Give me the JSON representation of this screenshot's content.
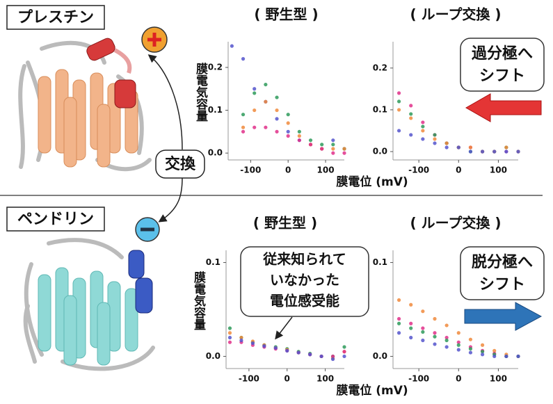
{
  "structures": {
    "top": "プレスチン",
    "bottom": "ペンドリン",
    "swap": "交換"
  },
  "annotations": {
    "hyperpolarize": [
      "過分極へ",
      "シフト"
    ],
    "depolarize": [
      "脱分極へ",
      "シフト"
    ],
    "novel": [
      "従来知られて",
      "いなかった",
      "電位感受能"
    ]
  },
  "chart_data": [
    {
      "type": "scatter",
      "title": "( 野生型 )",
      "y_label": "膜電気容量",
      "x_label": "膜電位 (mV)",
      "x": [
        -150,
        -120,
        -90,
        -60,
        -30,
        0,
        30,
        60,
        90,
        120,
        150
      ],
      "series": [
        {
          "color": "#5555cc",
          "values": [
            0.25,
            0.22,
            0.15,
            0.12,
            0.08,
            0.05,
            0.03,
            0.02,
            0.01,
            0.03,
            0.01
          ]
        },
        {
          "color": "#2e9a5a",
          "values": [
            null,
            0.09,
            0.14,
            0.16,
            0.13,
            0.09,
            0.05,
            0.03,
            0.02,
            0.02,
            0.01
          ]
        },
        {
          "color": "#f08a3c",
          "values": [
            null,
            0.06,
            0.1,
            0.12,
            0.1,
            0.07,
            0.04,
            0.02,
            0.01,
            0.01,
            0.01
          ]
        },
        {
          "color": "#e0308a",
          "values": [
            null,
            0.05,
            0.06,
            0.06,
            0.05,
            0.04,
            0.03,
            0.02,
            0.01,
            0.0,
            0.0
          ]
        }
      ],
      "xlim": [
        -160,
        150
      ],
      "ylim": [
        -0.016,
        0.26
      ],
      "xticks": [
        -100,
        0,
        100
      ],
      "yticks": [
        {
          "value": 0,
          "label": "0.0"
        },
        0.1,
        0.2
      ]
    },
    {
      "type": "scatter",
      "title": "( ループ交換 )",
      "x": [
        -150,
        -120,
        -90,
        -60,
        -30,
        0,
        30,
        60,
        90,
        120,
        150
      ],
      "series": [
        {
          "color": "#e0308a",
          "values": [
            0.14,
            0.11,
            0.07,
            0.04,
            0.02,
            0.01,
            0.01,
            0.0,
            0.0,
            0.0,
            0.0
          ]
        },
        {
          "color": "#2e9a5a",
          "values": [
            0.12,
            0.09,
            0.06,
            0.04,
            0.02,
            0.01,
            0.0,
            0.0,
            0.0,
            0.01,
            0.0
          ]
        },
        {
          "color": "#f08a3c",
          "values": [
            0.1,
            0.08,
            0.05,
            0.03,
            0.02,
            0.01,
            0.01,
            0.0,
            0.0,
            0.01,
            0.0
          ]
        },
        {
          "color": "#5555cc",
          "values": [
            0.05,
            0.04,
            0.03,
            0.02,
            0.01,
            0.01,
            0.0,
            0.0,
            0.0,
            0.0,
            0.0
          ]
        }
      ],
      "xlim": [
        -165,
        150
      ],
      "ylim": [
        -0.02,
        0.263
      ],
      "xticks": [
        -100,
        0,
        100
      ],
      "yticks": [
        {
          "value": 0,
          "label": "0.0"
        },
        0.1,
        0.2
      ]
    },
    {
      "type": "scatter",
      "title": "( 野生型 )",
      "y_label": "膜電気容量",
      "x_label": "膜電位 (mV)",
      "x": [
        -150,
        -120,
        -90,
        -60,
        -30,
        0,
        30,
        60,
        90,
        120,
        150
      ],
      "series": [
        {
          "color": "#2e9a5a",
          "values": [
            0.03,
            0.02,
            0.015,
            0.012,
            0.01,
            0.008,
            0.005,
            0.003,
            0.0,
            0.0,
            0.01
          ]
        },
        {
          "color": "#f08a3c",
          "values": [
            0.025,
            0.02,
            0.016,
            0.012,
            0.009,
            0.007,
            0.004,
            0.002,
            0.0,
            -0.002,
            0.005
          ]
        },
        {
          "color": "#e0308a",
          "values": [
            0.015,
            0.015,
            0.012,
            0.01,
            0.008,
            0.006,
            0.004,
            0.002,
            0.0,
            0.0,
            0.005
          ]
        },
        {
          "color": "#5555cc",
          "values": [
            0.02,
            0.017,
            0.014,
            0.011,
            0.009,
            0.006,
            0.004,
            0.002,
            0.0,
            -0.003,
            0.0
          ]
        }
      ],
      "xlim": [
        -160,
        150
      ],
      "ylim": [
        -0.013,
        0.113
      ],
      "xticks": [
        -100,
        0,
        100
      ],
      "yticks": [
        {
          "value": 0,
          "label": "0.0"
        },
        0.1
      ]
    },
    {
      "type": "scatter",
      "title": "( ループ交換 )",
      "x": [
        -150,
        -120,
        -90,
        -60,
        -30,
        0,
        30,
        60,
        90,
        120,
        150
      ],
      "series": [
        {
          "color": "#f08a3c",
          "values": [
            0.06,
            0.055,
            0.048,
            0.04,
            0.033,
            0.025,
            0.018,
            0.012,
            0.006,
            0.002,
            0.0
          ]
        },
        {
          "color": "#e0308a",
          "values": [
            0.04,
            0.035,
            0.03,
            0.025,
            0.02,
            0.015,
            0.01,
            0.006,
            0.003,
            0.0,
            0.0
          ]
        },
        {
          "color": "#2e9a5a",
          "values": [
            0.035,
            0.03,
            0.026,
            0.021,
            0.017,
            0.012,
            0.008,
            0.005,
            0.002,
            0.0,
            0.0
          ]
        },
        {
          "color": "#5555cc",
          "values": [
            0.025,
            0.02,
            0.017,
            0.013,
            0.01,
            0.007,
            0.004,
            0.002,
            0.0,
            0.0,
            0.0
          ]
        }
      ],
      "xlim": [
        -165,
        150
      ],
      "ylim": [
        -0.013,
        0.113
      ],
      "xticks": [
        -100,
        0,
        100
      ],
      "yticks": [
        {
          "value": 0,
          "label": "0.0"
        },
        0.1
      ]
    }
  ]
}
